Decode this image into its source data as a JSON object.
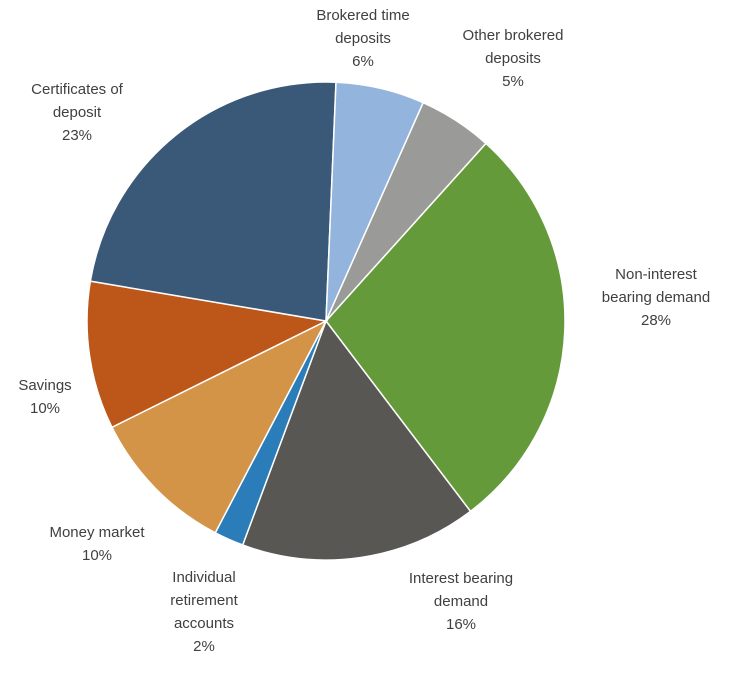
{
  "chart_data": {
    "type": "pie",
    "title": "",
    "slices": [
      {
        "label": "Non-interest bearing demand",
        "lines": [
          "Non-interest",
          "bearing demand"
        ],
        "value": 28,
        "value_label": "28%",
        "color": "#659A3B"
      },
      {
        "label": "Interest bearing demand",
        "lines": [
          "Interest bearing",
          "demand"
        ],
        "value": 16,
        "value_label": "16%",
        "color": "#585753"
      },
      {
        "label": "Individual retirement accounts",
        "lines": [
          "Individual",
          "retirement",
          "accounts"
        ],
        "value": 2,
        "value_label": "2%",
        "color": "#2A7DB9"
      },
      {
        "label": "Money market",
        "lines": [
          "Money market"
        ],
        "value": 10,
        "value_label": "10%",
        "color": "#D39447"
      },
      {
        "label": "Savings",
        "lines": [
          "Savings"
        ],
        "value": 10,
        "value_label": "10%",
        "color": "#BD5619"
      },
      {
        "label": "Certificates of deposit",
        "lines": [
          "Certificates of",
          "deposit"
        ],
        "value": 23,
        "value_label": "23%",
        "color": "#3A5877"
      },
      {
        "label": "Brokered time deposits",
        "lines": [
          "Brokered time",
          "deposits"
        ],
        "value": 6,
        "value_label": "6%",
        "color": "#93B4DC"
      },
      {
        "label": "Other brokered deposits",
        "lines": [
          "Other brokered",
          "deposits"
        ],
        "value": 5,
        "value_label": "5%",
        "color": "#9A9A98"
      }
    ],
    "legend": "none",
    "data_labels": "outside"
  }
}
